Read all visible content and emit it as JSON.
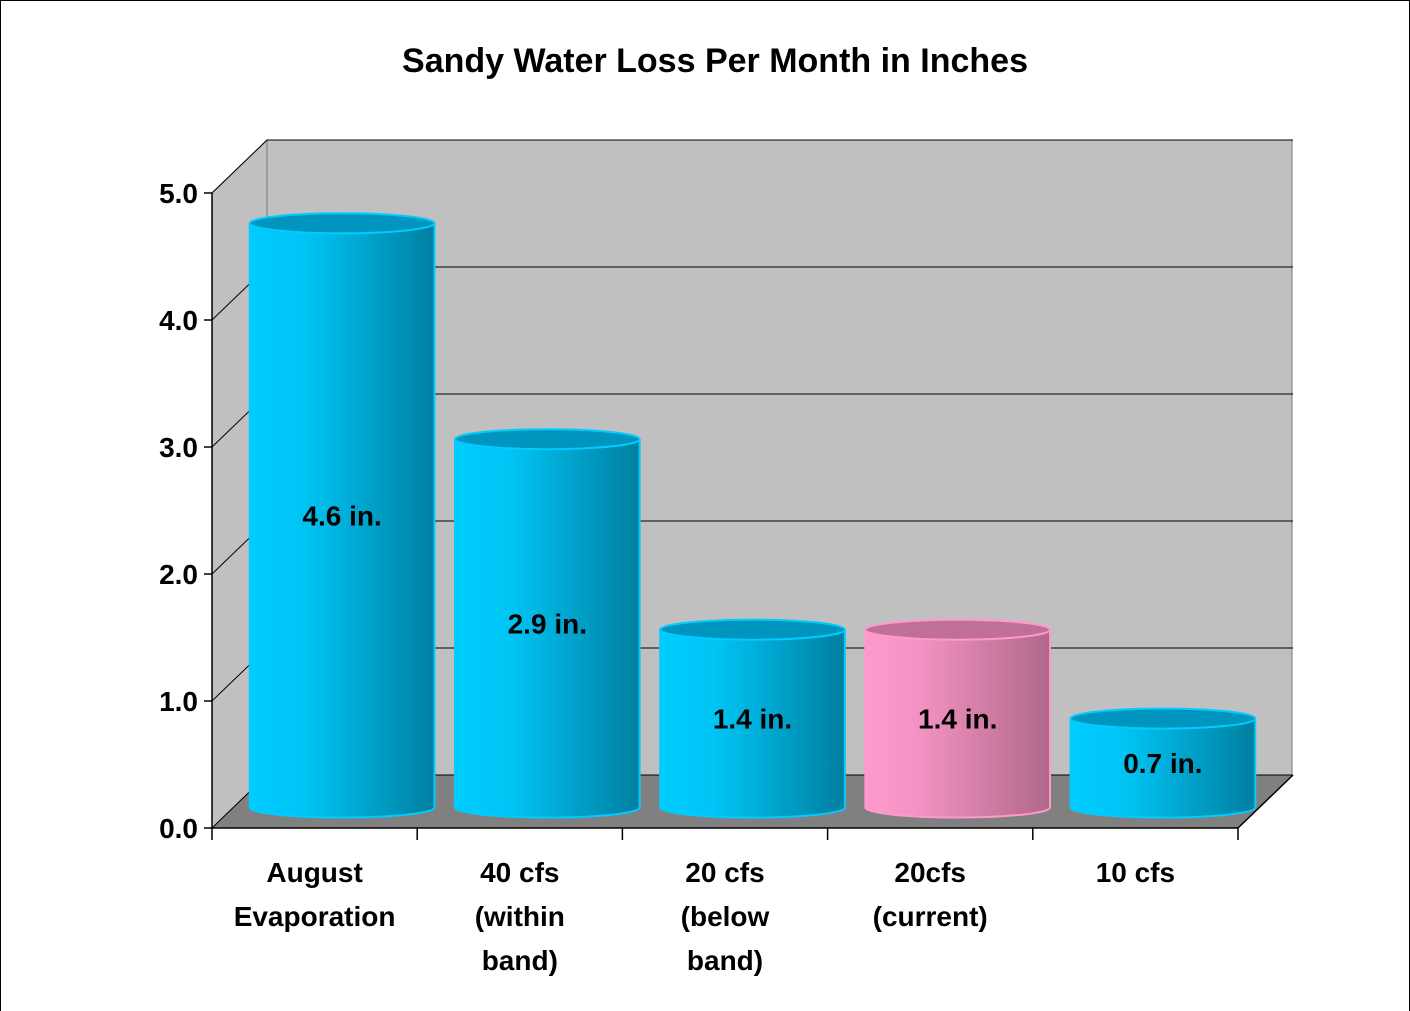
{
  "chart_data": {
    "type": "bar",
    "title": "Sandy Water Loss Per Month in Inches",
    "categories": [
      "August\nEvaporation",
      "40 cfs\n(within\nband)",
      "20 cfs\n(below\nband)",
      "20cfs\n(current)",
      "10 cfs"
    ],
    "values": [
      4.6,
      2.9,
      1.4,
      1.4,
      0.7
    ],
    "value_labels": [
      "4.6 in.",
      "2.9 in.",
      "1.4 in.",
      "1.4 in.",
      "0.7 in."
    ],
    "colors": [
      "#00ccff",
      "#00ccff",
      "#00ccff",
      "#ff99cc",
      "#00ccff"
    ],
    "ylim": [
      0,
      5
    ],
    "yticks": [
      {
        "value": 0,
        "label": "0.0"
      },
      {
        "value": 1,
        "label": "1.0"
      },
      {
        "value": 2,
        "label": "2.0"
      },
      {
        "value": 3,
        "label": "3.0"
      },
      {
        "value": 4,
        "label": "4.0"
      },
      {
        "value": 5,
        "label": "5.0"
      }
    ],
    "grid": true
  }
}
